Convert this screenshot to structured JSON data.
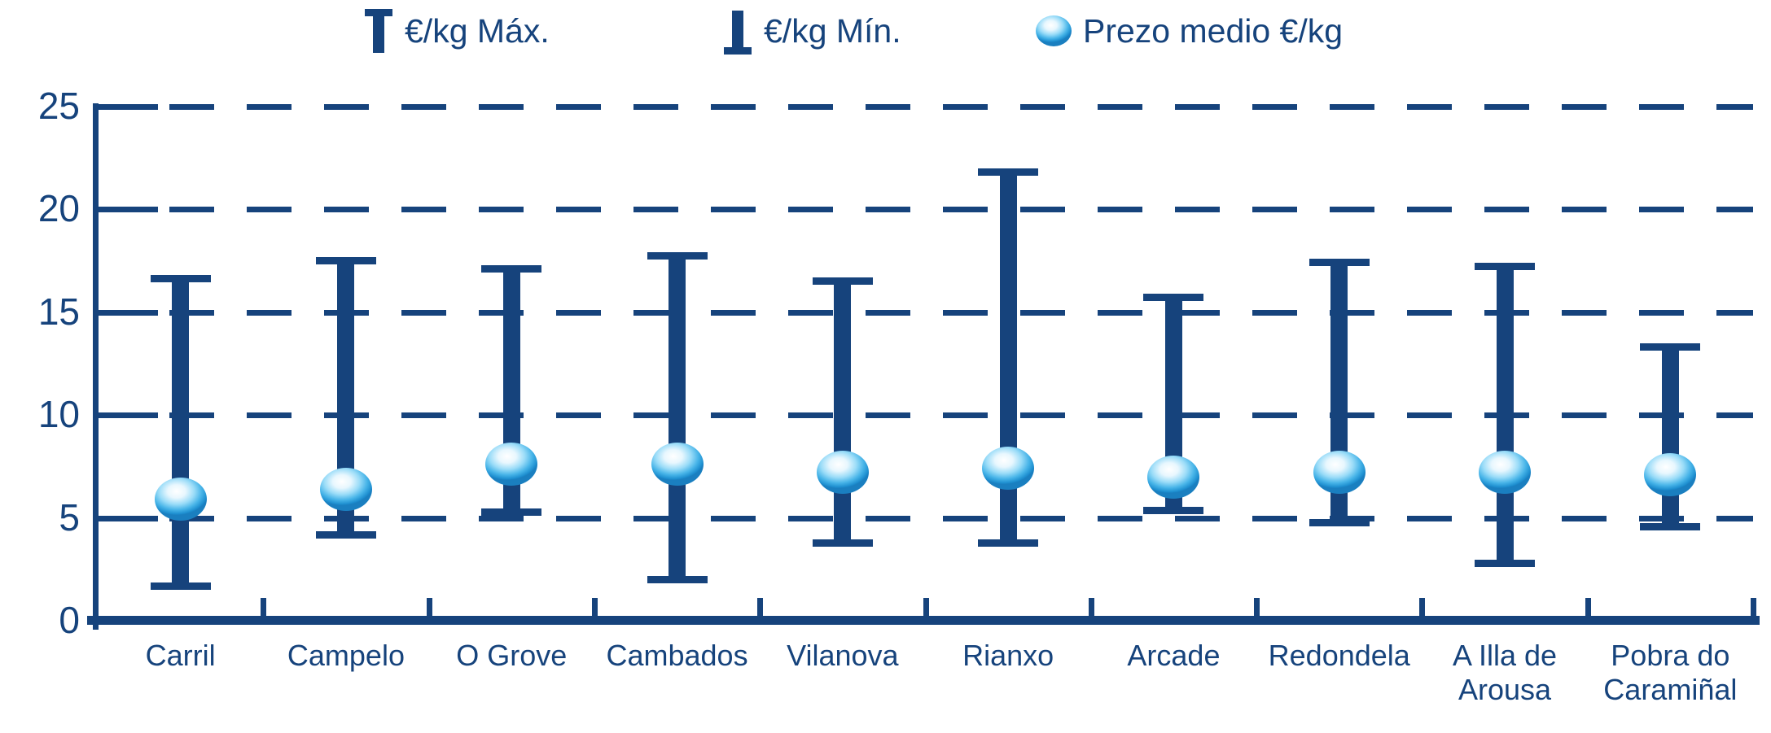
{
  "colors": {
    "navy": "#16437C",
    "sphere_highlight": "#ffffff",
    "sphere_mid": "#9adcf8",
    "sphere_edge": "#1a7fc0",
    "background": "#ffffff"
  },
  "legend": {
    "max_label": "€/kg Máx.",
    "min_label": "€/kg Mín.",
    "mean_label": "Prezo medio €/kg"
  },
  "chart_data": {
    "type": "hilo-whisker-with-mean-marker",
    "title": "",
    "xlabel": "",
    "ylabel": "",
    "categories": [
      "Carril",
      "Campelo",
      "O Grove",
      "Cambados",
      "Vilanova",
      "Rianxo",
      "Arcade",
      "Redondela",
      "A Illa de\nArousa",
      "Pobra do\nCaramiñal"
    ],
    "series": [
      {
        "name": "€/kg Máx.",
        "role": "max",
        "values": [
          16.8,
          17.7,
          17.3,
          17.9,
          16.7,
          22.0,
          15.9,
          17.6,
          17.4,
          13.5
        ]
      },
      {
        "name": "€/kg Mín.",
        "role": "min",
        "values": [
          1.5,
          4.0,
          5.1,
          1.8,
          3.6,
          3.6,
          5.2,
          4.6,
          2.6,
          4.4
        ]
      },
      {
        "name": "Prezo medio €/kg",
        "role": "mean",
        "values": [
          5.9,
          6.4,
          7.6,
          7.6,
          7.2,
          7.4,
          7.0,
          7.2,
          7.2,
          7.1
        ]
      }
    ],
    "ylim": [
      0,
      25
    ],
    "ytick_step": 5,
    "yticks": [
      0,
      5,
      10,
      15,
      20,
      25
    ],
    "grid": "horizontal-dashed",
    "legend_position": "top"
  }
}
